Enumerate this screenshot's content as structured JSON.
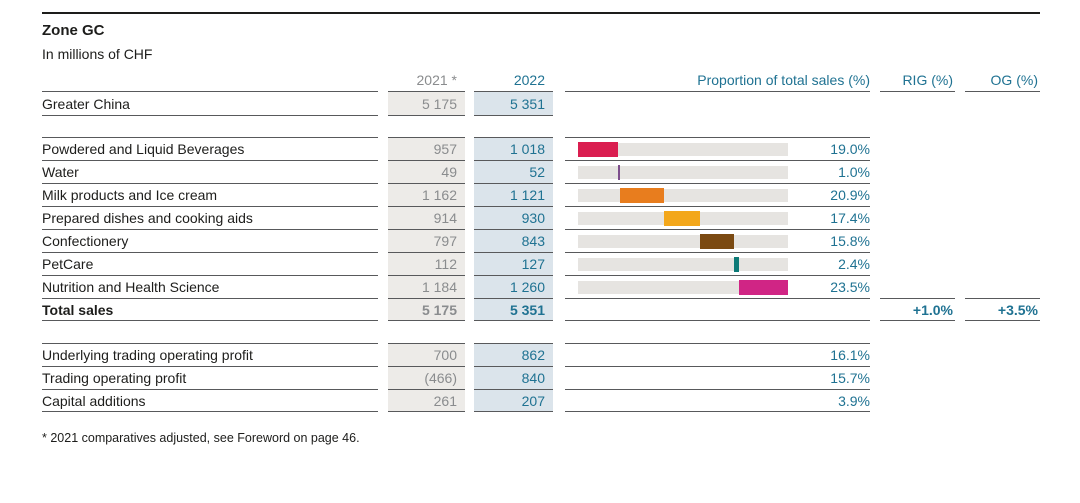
{
  "title": "Zone GC",
  "subtitle": "In millions of CHF",
  "columns": {
    "col2021": "2021 *",
    "col2022": "2022",
    "proportion": "Proportion of total sales (%)",
    "rig": "RIG (%)",
    "og": "OG (%)"
  },
  "summary_row": {
    "label": "Greater China",
    "v2021": "5 175",
    "v2022": "5 351"
  },
  "product_rows": [
    {
      "label": "Powdered and Liquid Beverages",
      "v2021": "957",
      "v2022": "1 018",
      "proportion": "19.0%",
      "bar": {
        "start": 0.0,
        "width": 19.0,
        "color": "#da1e50"
      }
    },
    {
      "label": "Water",
      "v2021": "49",
      "v2022": "52",
      "proportion": "1.0%",
      "bar": {
        "start": 19.0,
        "width": 1.0,
        "color": "#7d4e8c"
      }
    },
    {
      "label": "Milk products and Ice cream",
      "v2021": "1 162",
      "v2022": "1 121",
      "proportion": "20.9%",
      "bar": {
        "start": 20.0,
        "width": 20.9,
        "color": "#e87d1e"
      }
    },
    {
      "label": "Prepared dishes and cooking aids",
      "v2021": "914",
      "v2022": "930",
      "proportion": "17.4%",
      "bar": {
        "start": 40.9,
        "width": 17.4,
        "color": "#f3a71b"
      }
    },
    {
      "label": "Confectionery",
      "v2021": "797",
      "v2022": "843",
      "proportion": "15.8%",
      "bar": {
        "start": 58.3,
        "width": 15.8,
        "color": "#7b4a12"
      }
    },
    {
      "label": "PetCare",
      "v2021": "112",
      "v2022": "127",
      "proportion": "2.4%",
      "bar": {
        "start": 74.1,
        "width": 2.4,
        "color": "#0d7a77"
      }
    },
    {
      "label": "Nutrition and Health Science",
      "v2021": "1 184",
      "v2022": "1 260",
      "proportion": "23.5%",
      "bar": {
        "start": 76.5,
        "width": 23.5,
        "color": "#d02585"
      }
    }
  ],
  "total_row": {
    "label": "Total sales",
    "v2021": "5 175",
    "v2022": "5 351",
    "rig": "+1.0%",
    "og": "+3.5%"
  },
  "profit_rows": [
    {
      "label": "Underlying trading operating profit",
      "v2021": "700",
      "v2022": "862",
      "proportion": "16.1%"
    },
    {
      "label": "Trading operating profit",
      "v2021": "(466)",
      "v2022": "840",
      "proportion": "15.7%"
    },
    {
      "label": "Capital additions",
      "v2021": "261",
      "v2022": "207",
      "proportion": "3.9%"
    }
  ],
  "footnote": "* 2021 comparatives adjusted, see Foreword on page 46.",
  "colors": {
    "teal_text": "#1f7292",
    "gray_text": "#8a8c8e",
    "cell_2021_bg": "#edebe8",
    "cell_2022_bg": "#dbe4eb",
    "bar_track": "#e6e4e1",
    "rule": "#58595b"
  },
  "chart_data": {
    "type": "bar",
    "subtype": "horizontal-100%-stacked-segments",
    "title": "Proportion of total sales (%)",
    "categories": [
      "Powdered and Liquid Beverages",
      "Water",
      "Milk products and Ice cream",
      "Prepared dishes and cooking aids",
      "Confectionery",
      "PetCare",
      "Nutrition and Health Science"
    ],
    "values": [
      19.0,
      1.0,
      20.9,
      17.4,
      15.8,
      2.4,
      23.5
    ],
    "colors": [
      "#da1e50",
      "#7d4e8c",
      "#e87d1e",
      "#f3a71b",
      "#7b4a12",
      "#0d7a77",
      "#d02585"
    ],
    "xlim": [
      0,
      100
    ]
  }
}
